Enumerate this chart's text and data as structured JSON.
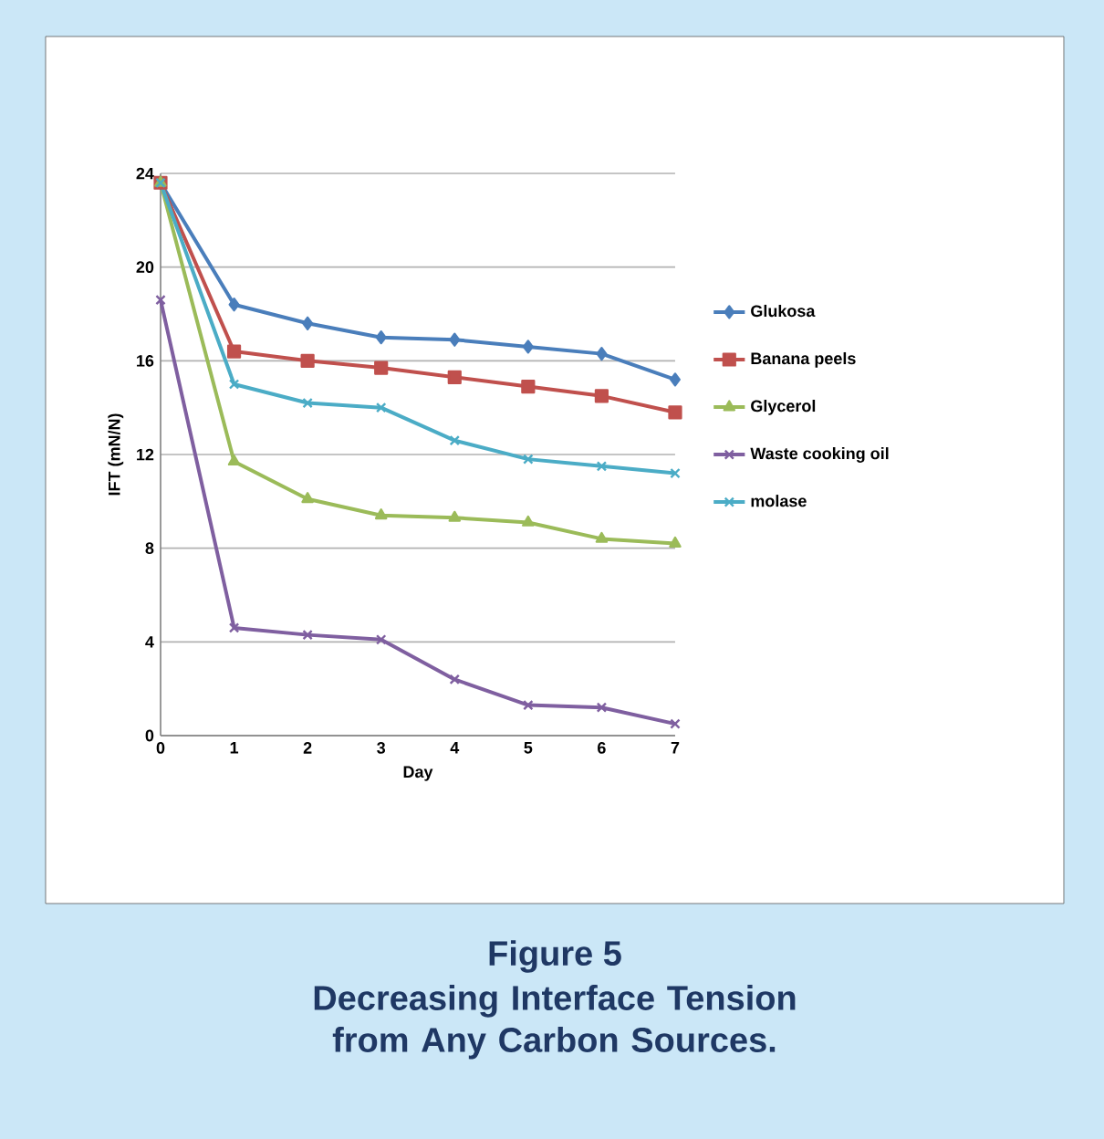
{
  "chart_data": {
    "type": "line",
    "title": "Figure 5",
    "subtitle": "Decreasing Interface Tension from Any Carbon Sources.",
    "xlabel": "Day",
    "ylabel": "IFT (mN/N)",
    "x": [
      0,
      1,
      2,
      3,
      4,
      5,
      6,
      7
    ],
    "xlim": [
      0,
      7
    ],
    "xticks": [
      0,
      1,
      2,
      3,
      4,
      5,
      6,
      7
    ],
    "ylim": [
      0,
      24
    ],
    "yticks": [
      0,
      4,
      8,
      12,
      16,
      20,
      24
    ],
    "grid": "y",
    "legend": "right",
    "series": [
      {
        "name": "Glukosa",
        "color": "#4a7ebb",
        "marker": "diamond",
        "values": [
          23.6,
          18.4,
          17.6,
          17.0,
          16.9,
          16.6,
          16.3,
          15.2
        ]
      },
      {
        "name": "Banana peels",
        "color": "#c0504d",
        "marker": "square",
        "values": [
          23.6,
          16.4,
          16.0,
          15.7,
          15.3,
          14.9,
          14.5,
          13.8
        ]
      },
      {
        "name": "Glycerol",
        "color": "#9bbb59",
        "marker": "triangle",
        "values": [
          23.6,
          11.7,
          10.1,
          9.4,
          9.3,
          9.1,
          8.4,
          8.2
        ]
      },
      {
        "name": "Waste cooking oil",
        "color": "#7f5fa0",
        "marker": "cross",
        "values": [
          18.6,
          4.6,
          4.3,
          4.1,
          2.4,
          1.3,
          1.2,
          0.5
        ]
      },
      {
        "name": "molase",
        "color": "#4bacc6",
        "marker": "cross",
        "values": [
          23.6,
          15.0,
          14.2,
          14.0,
          12.6,
          11.8,
          11.5,
          11.2
        ]
      }
    ]
  }
}
